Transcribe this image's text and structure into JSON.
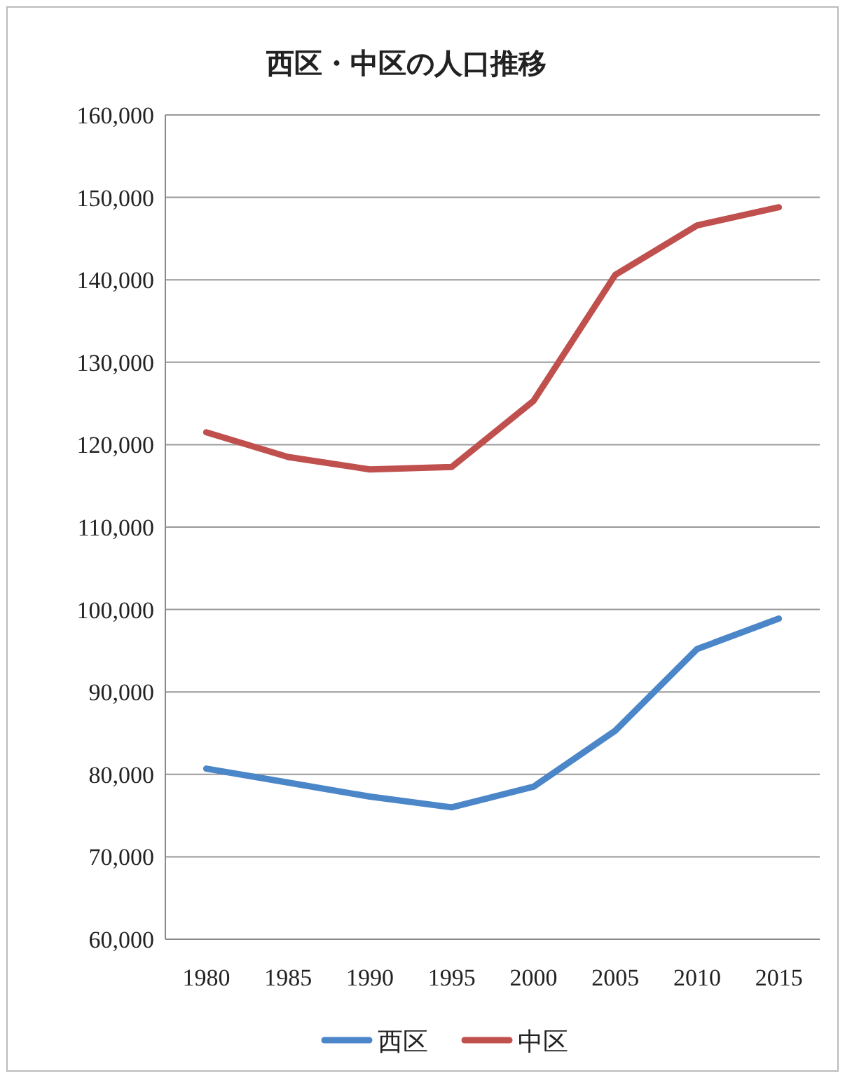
{
  "chart_data": {
    "type": "line",
    "title": "西区・中区の人口推移",
    "categories": [
      "1980",
      "1985",
      "1990",
      "1995",
      "2000",
      "2005",
      "2010",
      "2015"
    ],
    "series": [
      {
        "name": "西区",
        "color": "#4a86c8",
        "values": [
          80700,
          79000,
          77300,
          76000,
          78500,
          85300,
          95200,
          98900
        ]
      },
      {
        "name": "中区",
        "color": "#c0504d",
        "values": [
          121500,
          118500,
          117000,
          117300,
          125300,
          140600,
          146600,
          148800
        ]
      }
    ],
    "ylim": [
      60000,
      160000
    ],
    "yticks": [
      {
        "value": 60000,
        "label": "60,000"
      },
      {
        "value": 70000,
        "label": "70,000"
      },
      {
        "value": 80000,
        "label": "80,000"
      },
      {
        "value": 90000,
        "label": "90,000"
      },
      {
        "value": 100000,
        "label": "100,000"
      },
      {
        "value": 110000,
        "label": "110,000"
      },
      {
        "value": 120000,
        "label": "120,000"
      },
      {
        "value": 130000,
        "label": "130,000"
      },
      {
        "value": 140000,
        "label": "140,000"
      },
      {
        "value": 150000,
        "label": "150,000"
      },
      {
        "value": 160000,
        "label": "160,000"
      }
    ],
    "grid": "y",
    "legend": "bottom",
    "marker": "none",
    "line_style": "solid"
  }
}
